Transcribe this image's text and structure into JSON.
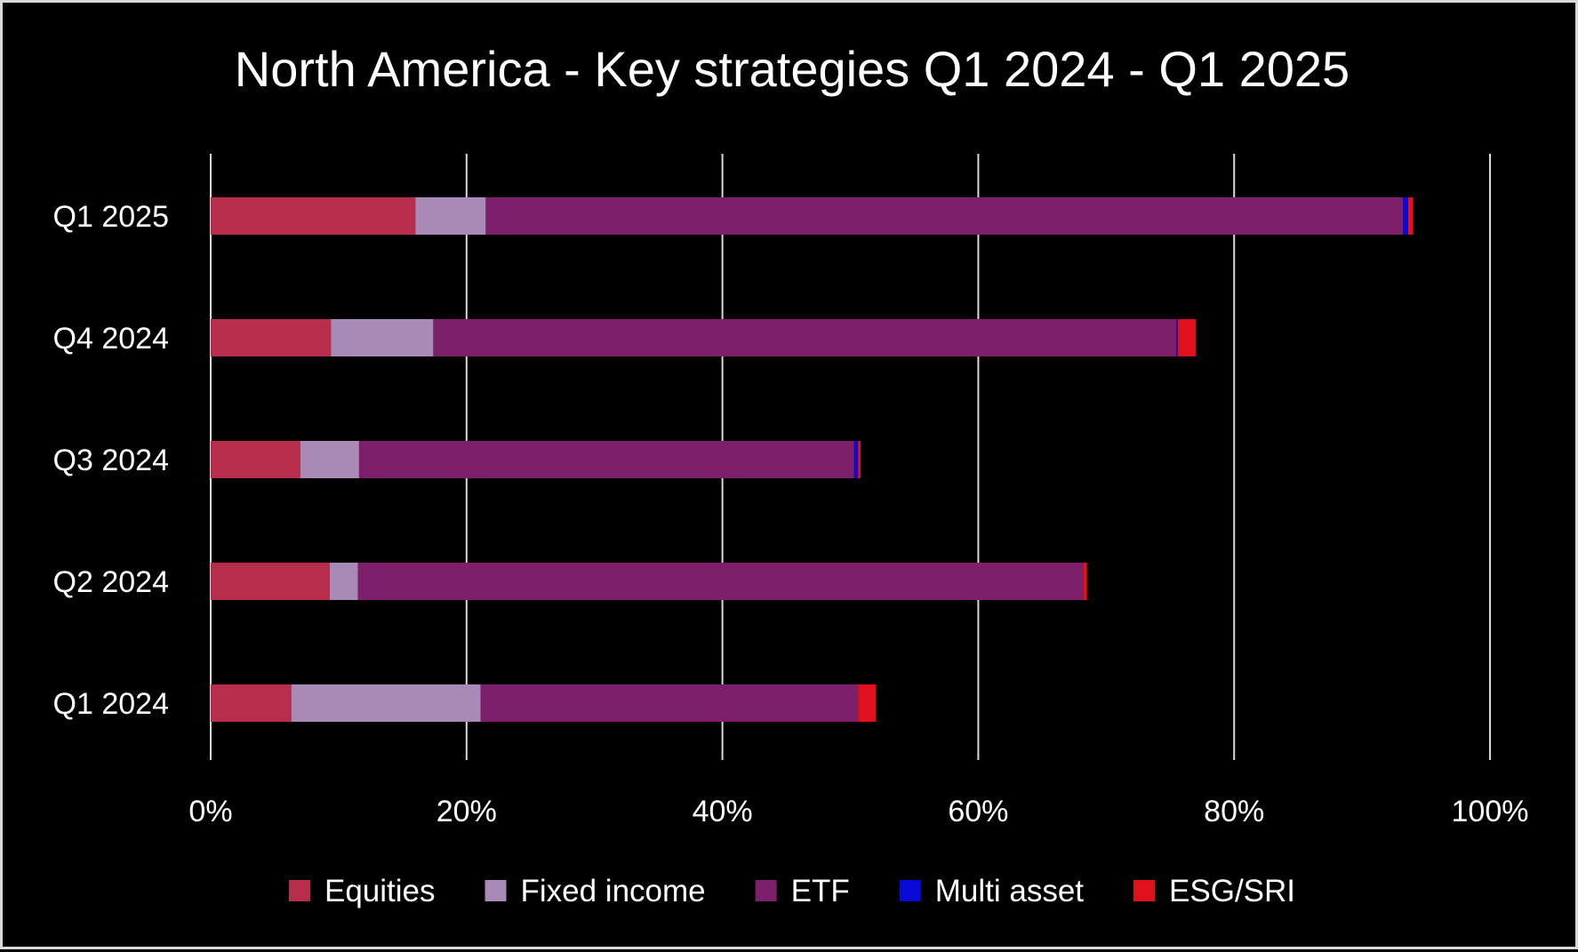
{
  "chart_data": {
    "type": "bar",
    "orientation": "horizontal",
    "stacked": true,
    "title": "North America - Key strategies Q1 2024 - Q1 2025",
    "xlabel": "",
    "ylabel": "",
    "categories": [
      "Q1 2025",
      "Q4 2024",
      "Q3 2024",
      "Q2 2024",
      "Q1 2024"
    ],
    "xlim": [
      0,
      100
    ],
    "x_ticks": [
      "0%",
      "20%",
      "40%",
      "60%",
      "80%",
      "100%"
    ],
    "grid": "vertical",
    "legend_position": "bottom",
    "series": [
      {
        "name": "Equities",
        "color": "#b82c4c",
        "values": [
          16.0,
          9.4,
          7.0,
          9.3,
          6.3
        ]
      },
      {
        "name": "Fixed income",
        "color": "#a98ab7",
        "values": [
          5.5,
          8.0,
          4.6,
          2.2,
          14.8
        ]
      },
      {
        "name": "ETF",
        "color": "#7e1f6c",
        "values": [
          71.7,
          58.1,
          38.7,
          56.7,
          29.5
        ]
      },
      {
        "name": "Multi asset",
        "color": "#0a0ad6",
        "values": [
          0.4,
          0.1,
          0.3,
          0.0,
          0.0
        ]
      },
      {
        "name": "ESG/SRI",
        "color": "#e0101c",
        "values": [
          0.4,
          1.4,
          0.2,
          0.3,
          1.4
        ]
      }
    ]
  }
}
